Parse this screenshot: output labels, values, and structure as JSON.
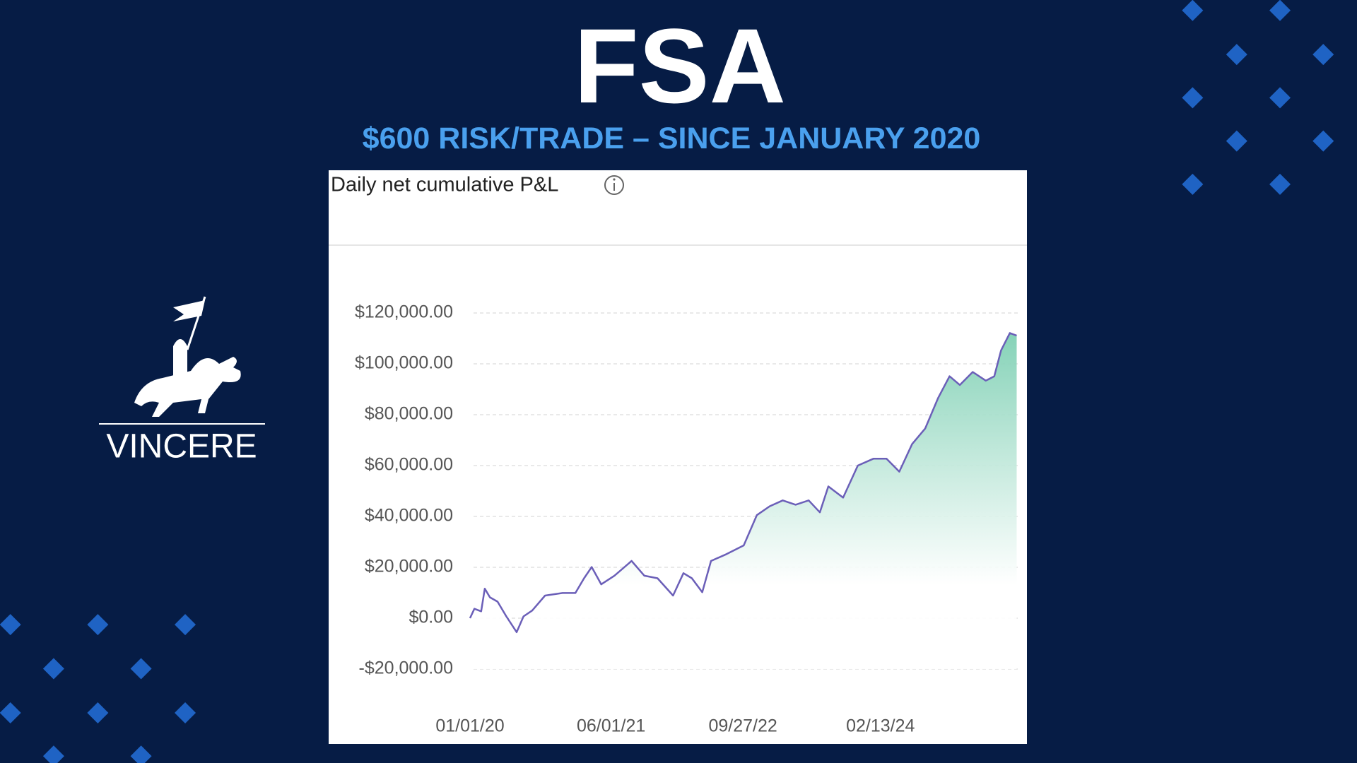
{
  "title": "FSA",
  "subtitle": "$600 RISK/TRADE – SINCE JANUARY 2020",
  "logo_text": "VINCERE",
  "chart_data": {
    "type": "area",
    "title": "Daily net cumulative P&L",
    "x": [
      "01/01/20",
      "01/17/20",
      "02/11/20",
      "02/24/20",
      "03/14/20",
      "04/11/20",
      "05/13/20",
      "06/20/20",
      "07/15/20",
      "08/16/20",
      "10/02/20",
      "12/05/20",
      "01/21/21",
      "02/22/21",
      "03/22/21",
      "04/26/21",
      "06/13/21",
      "08/15/21",
      "10/01/21",
      "11/18/21",
      "01/14/22",
      "02/21/22",
      "03/24/22",
      "05/01/22",
      "06/02/22",
      "07/29/22",
      "09/30/22",
      "11/17/22",
      "01/03/23",
      "02/20/23",
      "04/08/23",
      "05/26/23",
      "07/06/23",
      "08/06/23",
      "09/29/23",
      "11/22/23",
      "01/18/24",
      "03/06/24",
      "04/22/24",
      "06/08/24",
      "07/26/24",
      "09/11/24",
      "10/23/24",
      "11/30/24",
      "01/16/25",
      "03/05/25",
      "04/05/25",
      "04/30/25",
      "06/01/25",
      "06/26/25"
    ],
    "values": [
      0,
      3700,
      2700,
      11600,
      8200,
      6500,
      700,
      -5500,
      700,
      3000,
      8900,
      9900,
      9900,
      15700,
      20100,
      13300,
      16700,
      22500,
      16700,
      15700,
      8900,
      17700,
      15700,
      10200,
      22500,
      25200,
      28600,
      40500,
      44000,
      46300,
      44600,
      46300,
      41600,
      51800,
      47400,
      60000,
      62700,
      62700,
      57600,
      68500,
      74600,
      86500,
      95100,
      91700,
      96800,
      93400,
      95100,
      105300,
      112100,
      111100
    ],
    "color": "#6b5fb8",
    "fill_color": "#7fd0b4",
    "xlim": [
      "01/01/20",
      "06/30/25"
    ],
    "xticks": [
      "01/01/20",
      "06/01/21",
      "09/27/22",
      "02/13/24"
    ],
    "ylim": [
      -20000,
      120000
    ],
    "yticks": [
      {
        "value": -20000,
        "label": "-$20,000.00"
      },
      {
        "value": 0,
        "label": "$0.00"
      },
      {
        "value": 20000,
        "label": "$20,000.00"
      },
      {
        "value": 40000,
        "label": "$40,000.00"
      },
      {
        "value": 60000,
        "label": "$60,000.00"
      },
      {
        "value": 80000,
        "label": "$80,000.00"
      },
      {
        "value": 100000,
        "label": "$100,000.00"
      },
      {
        "value": 120000,
        "label": "$120,000.00"
      }
    ],
    "grid": true
  }
}
